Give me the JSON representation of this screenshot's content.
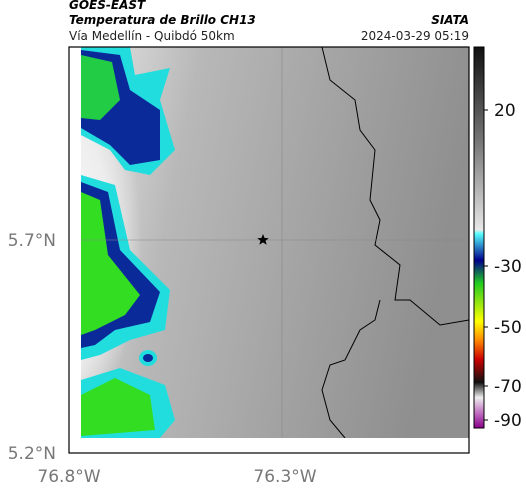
{
  "header": {
    "source": "GOES-EAST",
    "title": "Temperatura de Brillo CH13",
    "org": "SIATA",
    "route": "Vía Medellín - Quibdó 50km",
    "timestamp": "2024-03-29 05:19"
  },
  "map": {
    "lat_labels": [
      "5.7°N",
      "5.2°N"
    ],
    "lon_labels": [
      "76.8°W",
      "76.3°W"
    ]
  },
  "colorbar": {
    "ticks": [
      20,
      -30,
      -50,
      -70,
      -90
    ]
  }
}
